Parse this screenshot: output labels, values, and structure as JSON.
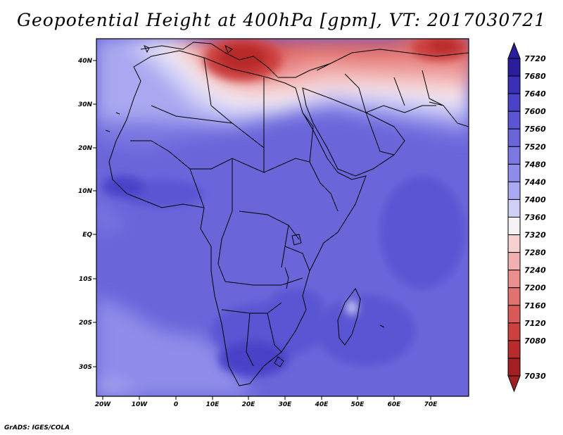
{
  "title": "Geopotential Height at 400hPa [gpm], VT: 2017030721",
  "footer": "GrADS: IGES/COLA",
  "map": {
    "lon_ticks": [
      "20W",
      "10W",
      "0",
      "10E",
      "20E",
      "30E",
      "40E",
      "50E",
      "60E",
      "70E"
    ],
    "lat_ticks": [
      "40N",
      "30N",
      "20N",
      "10N",
      "EQ",
      "10S",
      "20S",
      "30S"
    ]
  },
  "colorbar": {
    "labels": [
      "7720",
      "7680",
      "7640",
      "7600",
      "7560",
      "7520",
      "7480",
      "7440",
      "7400",
      "7360",
      "7320",
      "7280",
      "7240",
      "7200",
      "7160",
      "7120",
      "7080",
      "7030"
    ],
    "colors": [
      "#2a1e9c",
      "#3b2fb8",
      "#4a43c8",
      "#5a55d2",
      "#6a66da",
      "#7c78e2",
      "#8f8cea",
      "#a9a8f0",
      "#cfcff7",
      "#f6f1f3",
      "#f7d1d1",
      "#f2b1b0",
      "#ea8f8d",
      "#e27270",
      "#d85a56",
      "#cc4140",
      "#b82c2c",
      "#a21f22"
    ]
  }
}
